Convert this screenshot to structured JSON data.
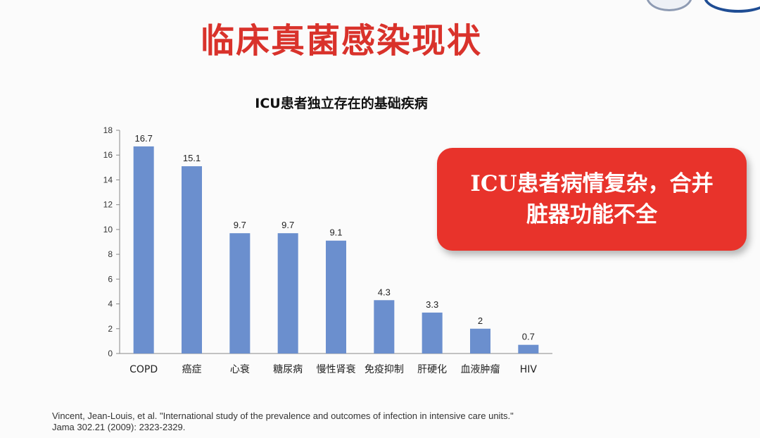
{
  "slide": {
    "title": "临床真菌感染现状",
    "callout_line1": "ICU患者病情复杂，合并",
    "callout_line2": "脏器功能不全",
    "citation_line1": "Vincent, Jean-Louis, et al. \"International study of the prevalence and outcomes of infection in intensive care units.\"",
    "citation_line2": "Jama 302.21 (2009): 2323-2329."
  },
  "chart_data": {
    "type": "bar",
    "title": "ICU患者独立存在的基础疾病",
    "categories": [
      "COPD",
      "癌症",
      "心衰",
      "糖尿病",
      "慢性肾衰",
      "免疫抑制",
      "肝硬化",
      "血液肿瘤",
      "HIV"
    ],
    "values": [
      16.7,
      15.1,
      9.7,
      9.7,
      9.1,
      4.3,
      3.3,
      2,
      0.7
    ],
    "data_labels": [
      "16.7",
      "15.1",
      "9.7",
      "9.7",
      "9.1",
      "4.3",
      "3.3",
      "2",
      "0.7"
    ],
    "ylim": [
      0,
      18
    ],
    "yticks": [
      0,
      2,
      4,
      6,
      8,
      10,
      12,
      14,
      16,
      18
    ],
    "xlabel": "",
    "ylabel": "",
    "grid": false,
    "bar_color": "#6b8fce"
  },
  "colors": {
    "title_red": "#d9322b",
    "callout_red": "#e8332b"
  }
}
